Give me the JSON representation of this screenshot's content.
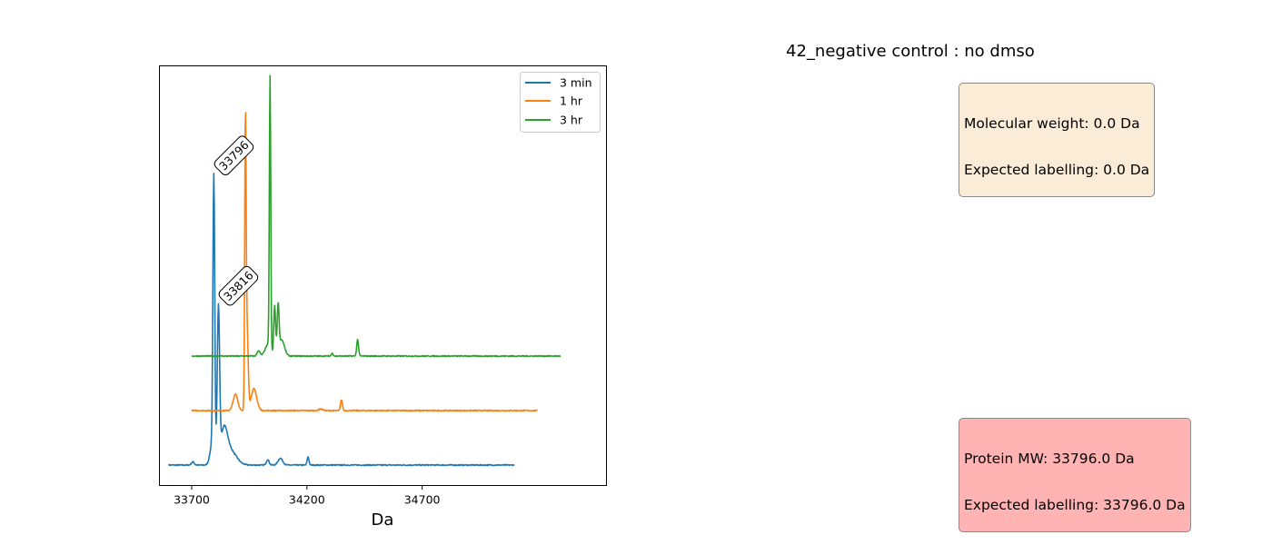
{
  "figure": {
    "title": "42_negative control : no dmso",
    "info_box": {
      "line1": "Molecular weight: 0.0 Da",
      "line2": "Expected labelling: 0.0 Da",
      "color": "#faecd6"
    },
    "protein_box": {
      "line1": "Protein MW: 33796.0 Da",
      "line2": "Expected labelling: 33796.0 Da",
      "color": "#ffb3b3"
    }
  },
  "chart_data": {
    "type": "line",
    "title": "",
    "xlabel": "Da",
    "ylabel": "",
    "xlim": [
      33560,
      35500
    ],
    "xticks": [
      33700,
      34200,
      34700
    ],
    "legend": {
      "placement": "top-right",
      "entries": [
        "3 min",
        "1 hr",
        "3 hr"
      ]
    },
    "series": [
      {
        "name": "3 min",
        "color": "#1f77b4",
        "x_range": [
          33600,
          35100
        ],
        "baseline": 0,
        "peaks": [
          {
            "x": 33705,
            "h": 0.012,
            "w": 6
          },
          {
            "x": 33790,
            "h": 0.08,
            "w": 10
          },
          {
            "x": 33796,
            "h": 1.0,
            "w": 4
          },
          {
            "x": 33816,
            "h": 0.55,
            "w": 5
          },
          {
            "x": 33840,
            "h": 0.12,
            "w": 15
          },
          {
            "x": 33870,
            "h": 0.05,
            "w": 25
          },
          {
            "x": 34030,
            "h": 0.02,
            "w": 6
          },
          {
            "x": 34085,
            "h": 0.025,
            "w": 10
          },
          {
            "x": 34205,
            "h": 0.03,
            "w": 4
          }
        ]
      },
      {
        "name": "1 hr",
        "color": "#ff7f0e",
        "x_range": [
          33700,
          35200
        ],
        "baseline": 0.2,
        "peaks": [
          {
            "x": 33890,
            "h": 0.06,
            "w": 10
          },
          {
            "x": 33933,
            "h": 1.0,
            "w": 3
          },
          {
            "x": 33940,
            "h": 0.3,
            "w": 5
          },
          {
            "x": 33970,
            "h": 0.08,
            "w": 12
          },
          {
            "x": 34350,
            "h": 0.04,
            "w": 4
          },
          {
            "x": 34260,
            "h": 0.006,
            "w": 8
          }
        ]
      },
      {
        "name": "3 hr",
        "color": "#2ca02c",
        "x_range": [
          33700,
          35300
        ],
        "baseline": 0.4,
        "peaks": [
          {
            "x": 33990,
            "h": 0.02,
            "w": 6
          },
          {
            "x": 34030,
            "h": 0.04,
            "w": 12
          },
          {
            "x": 34040,
            "h": 1.0,
            "w": 3
          },
          {
            "x": 34060,
            "h": 0.18,
            "w": 4
          },
          {
            "x": 34075,
            "h": 0.17,
            "w": 4
          },
          {
            "x": 34090,
            "h": 0.06,
            "w": 12
          },
          {
            "x": 34310,
            "h": 0.01,
            "w": 4
          },
          {
            "x": 34420,
            "h": 0.06,
            "w": 4
          }
        ]
      }
    ],
    "annotations": [
      {
        "text": "33796",
        "x": 33796,
        "series": "3 min"
      },
      {
        "text": "33816",
        "x": 33816,
        "series": "3 min"
      }
    ]
  }
}
